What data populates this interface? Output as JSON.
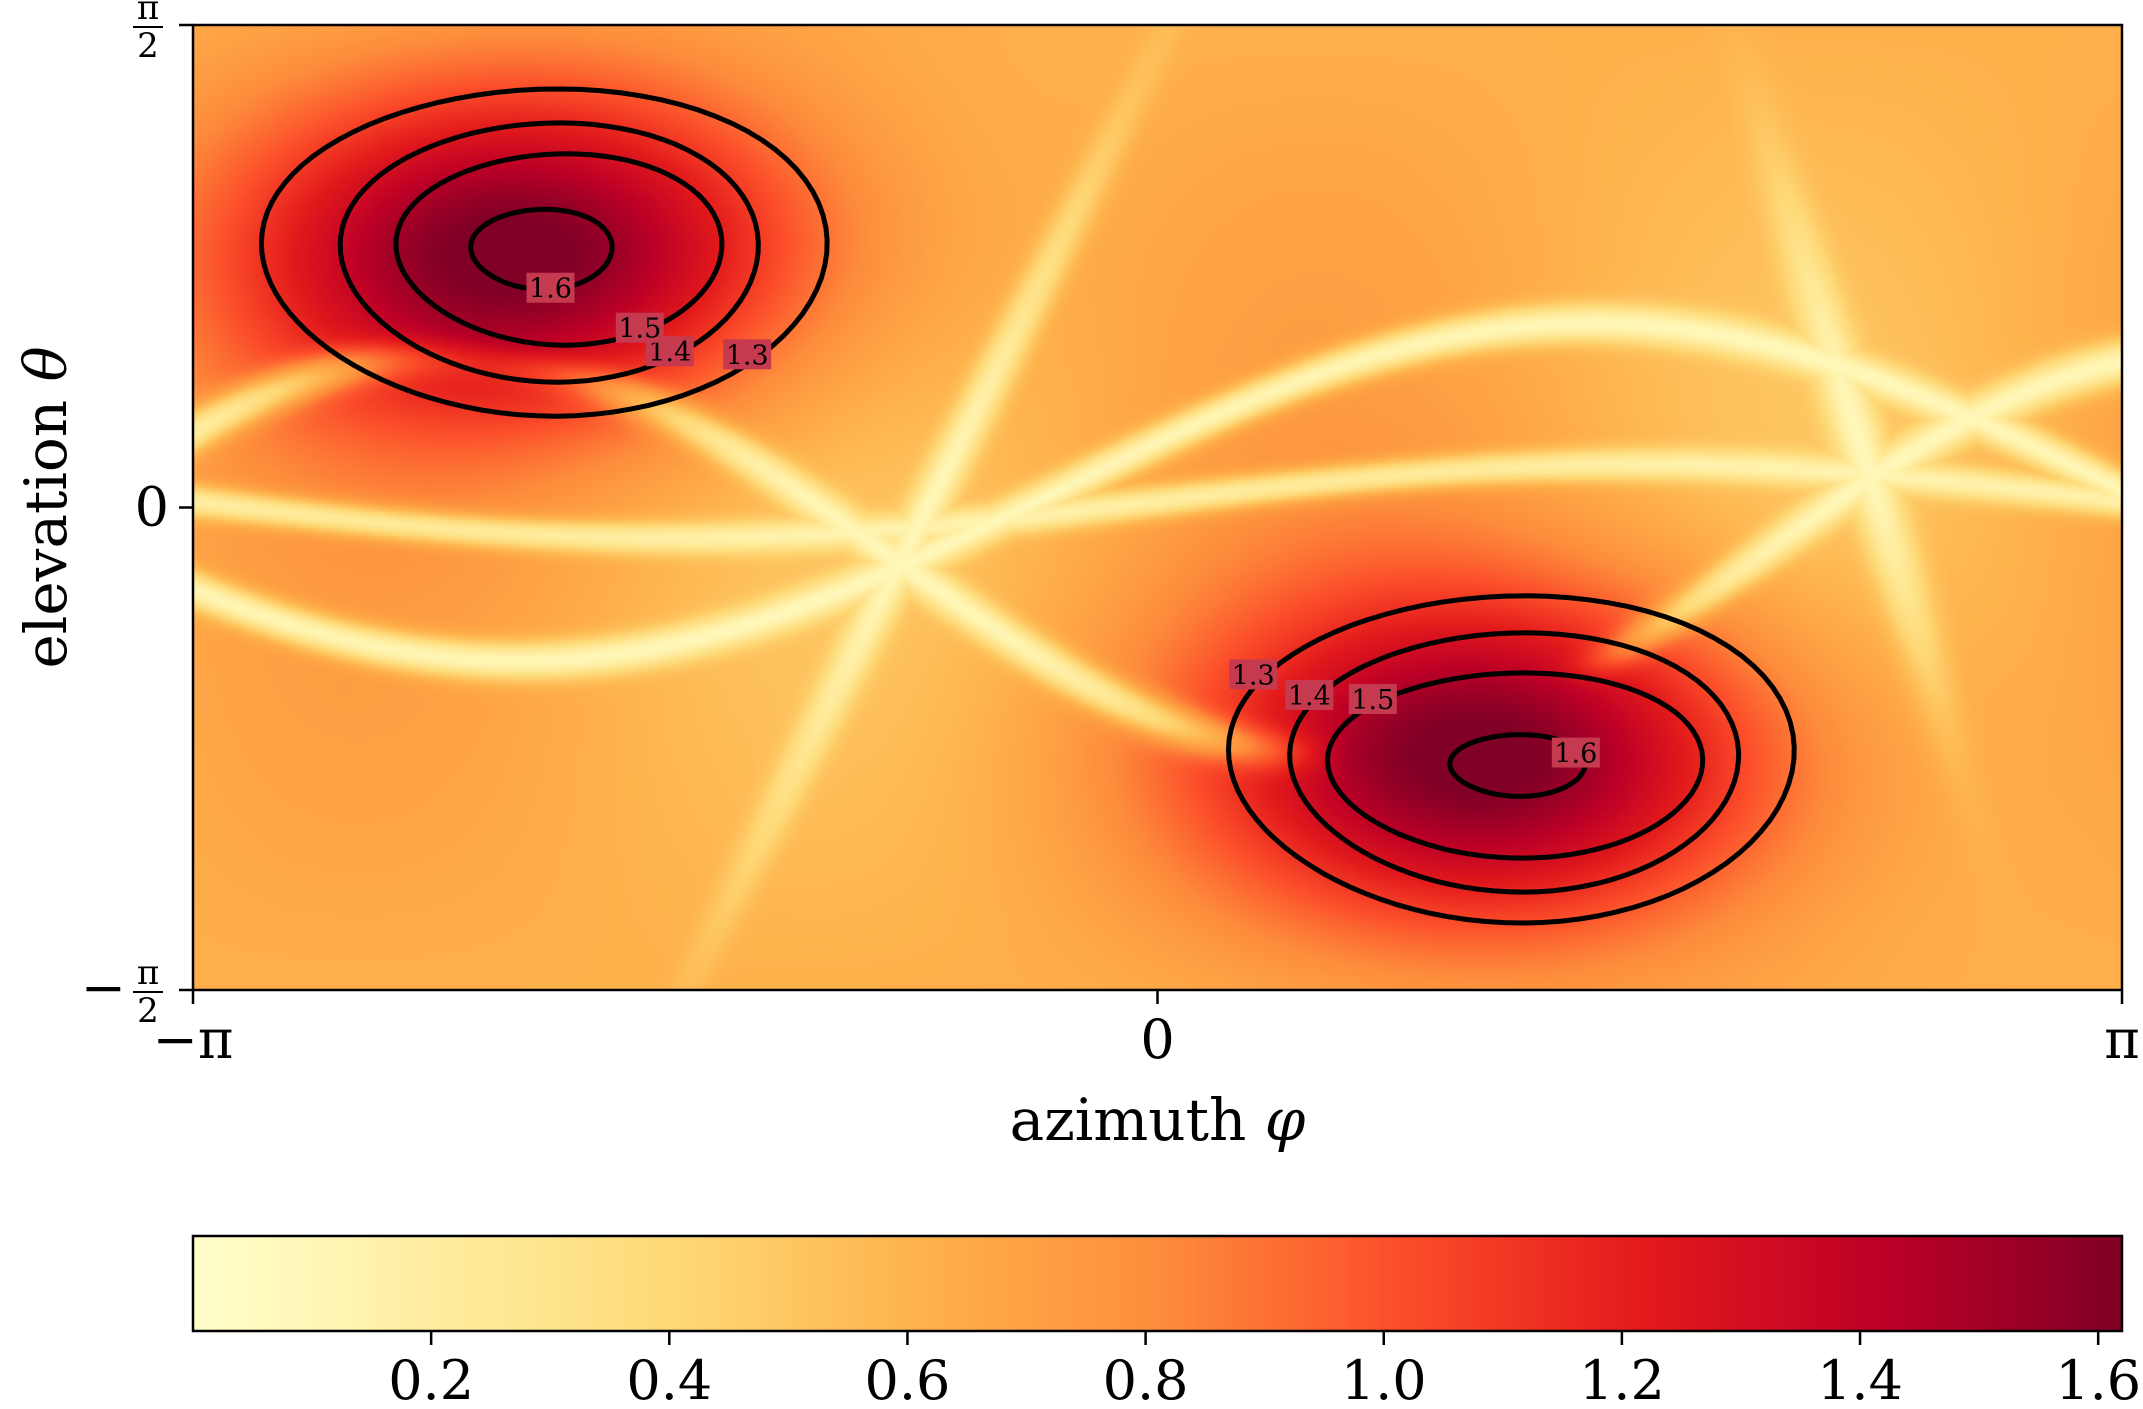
{
  "chart_data": {
    "type": "heatmap",
    "xlabel_text": "azimuth",
    "xlabel_symbol": "φ",
    "ylabel_text": "elevation",
    "ylabel_symbol": "θ",
    "x_domain": [
      -3.14159,
      3.14159
    ],
    "y_domain": [
      -1.5708,
      1.5708
    ],
    "xticks": [
      {
        "value": -3.14159,
        "label": "−π"
      },
      {
        "value": 0,
        "label": "0"
      },
      {
        "value": 3.14159,
        "label": "π"
      }
    ],
    "yticks": [
      {
        "value": 1.5708,
        "label": "π/2",
        "num": "π",
        "den": "2",
        "sign": ""
      },
      {
        "value": 0,
        "label": "0"
      },
      {
        "value": -1.5708,
        "label": "−π/2",
        "num": "π",
        "den": "2",
        "sign": "−"
      }
    ],
    "colormap": [
      "#ffffcc",
      "#ffeda0",
      "#fed976",
      "#feb24c",
      "#fd8d3c",
      "#fc4e2a",
      "#e31a1c",
      "#bd0026",
      "#800026"
    ],
    "colorbar": {
      "range": [
        0,
        1.62
      ],
      "orientation": "horizontal",
      "ticks": [
        {
          "value": 0.2,
          "label": "0.2"
        },
        {
          "value": 0.4,
          "label": "0.4"
        },
        {
          "value": 0.6,
          "label": "0.6"
        },
        {
          "value": 0.8,
          "label": "0.8"
        },
        {
          "value": 1.0,
          "label": "1.0"
        },
        {
          "value": 1.2,
          "label": "1.2"
        },
        {
          "value": 1.4,
          "label": "1.4"
        },
        {
          "value": 1.6,
          "label": "1.6"
        }
      ]
    },
    "contour_levels": [
      1.3,
      1.4,
      1.5,
      1.6
    ],
    "contours": [
      {
        "center": [
          -2.05,
          0.83
        ],
        "level": 1.3,
        "label": "1.3",
        "rx": 0.92,
        "ry": 0.53,
        "label_angle": 5.6
      },
      {
        "center": [
          -2.02,
          0.83
        ],
        "level": 1.4,
        "label": "1.4",
        "rx": 0.68,
        "ry": 0.42,
        "label_angle": 5.4
      },
      {
        "center": [
          -1.98,
          0.84
        ],
        "level": 1.5,
        "label": "1.5",
        "rx": 0.53,
        "ry": 0.31,
        "label_angle": 5.3
      },
      {
        "center": [
          -2.02,
          0.84
        ],
        "level": 1.6,
        "label": "1.6",
        "rx": 0.23,
        "ry": 0.13,
        "label_angle": 4.9
      },
      {
        "center": [
          1.1,
          -0.82
        ],
        "level": 1.3,
        "label": "1.3",
        "rx": 0.92,
        "ry": 0.53,
        "label_angle": 2.6
      },
      {
        "center": [
          1.12,
          -0.83
        ],
        "level": 1.4,
        "label": "1.4",
        "rx": 0.73,
        "ry": 0.42,
        "label_angle": 2.6
      },
      {
        "center": [
          1.13,
          -0.84
        ],
        "level": 1.5,
        "label": "1.5",
        "rx": 0.61,
        "ry": 0.3,
        "label_angle": 2.35
      },
      {
        "center": [
          1.16,
          -0.84
        ],
        "level": 1.6,
        "label": "1.6",
        "rx": 0.22,
        "ry": 0.1,
        "label_angle": 0.4
      }
    ]
  }
}
